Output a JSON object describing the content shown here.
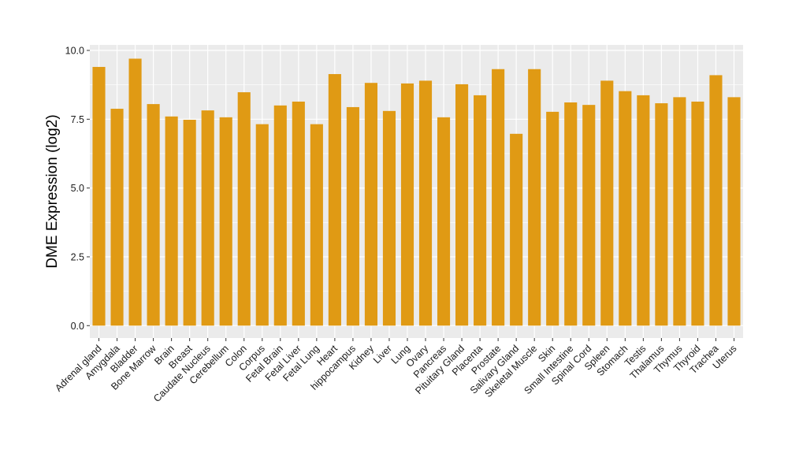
{
  "chart_data": {
    "type": "bar",
    "title": "",
    "xlabel": "",
    "ylabel": "DME Expression (log2)",
    "ylim": [
      -0.45,
      10.2
    ],
    "yticks": [
      0.0,
      2.5,
      5.0,
      7.5,
      10.0
    ],
    "ytick_labels": [
      "0.0",
      "2.5",
      "5.0",
      "7.5",
      "10.0"
    ],
    "grid": true,
    "legend": "none",
    "bar_color": "#E09A14",
    "panel_color": "#EBEBEB",
    "grid_color": "#FFFFFF",
    "categories": [
      "Adrenal gland",
      "Amygdala",
      "Bladder",
      "Bone Marrow",
      "Brain",
      "Breast",
      "Caudate Nucleus",
      "Cerebellum",
      "Colon",
      "Corpus",
      "Fetal Brain",
      "Fetal Liver",
      "Fetal Lung",
      "Heart",
      "hippocampus",
      "Kidney",
      "Liver",
      "Lung",
      "Ovary",
      "Pancreas",
      "Pituitary Gland",
      "Placenta",
      "Prostate",
      "Salivary Gland",
      "Skeletal Muscle",
      "Skin",
      "Small Intestine",
      "Spinal Cord",
      "Spleen",
      "Stomach",
      "Testis",
      "Thalamus",
      "Thymus",
      "Thyroid",
      "Trachea",
      "Uterus"
    ],
    "values": [
      9.4,
      7.88,
      9.7,
      8.05,
      7.6,
      7.48,
      7.82,
      7.57,
      8.48,
      7.32,
      8.0,
      8.14,
      7.32,
      9.14,
      7.94,
      8.82,
      7.8,
      8.8,
      8.9,
      7.57,
      8.77,
      8.37,
      9.32,
      6.97,
      9.32,
      7.77,
      8.11,
      8.02,
      8.9,
      8.52,
      8.37,
      8.08,
      8.3,
      8.14,
      9.1,
      8.3
    ]
  }
}
